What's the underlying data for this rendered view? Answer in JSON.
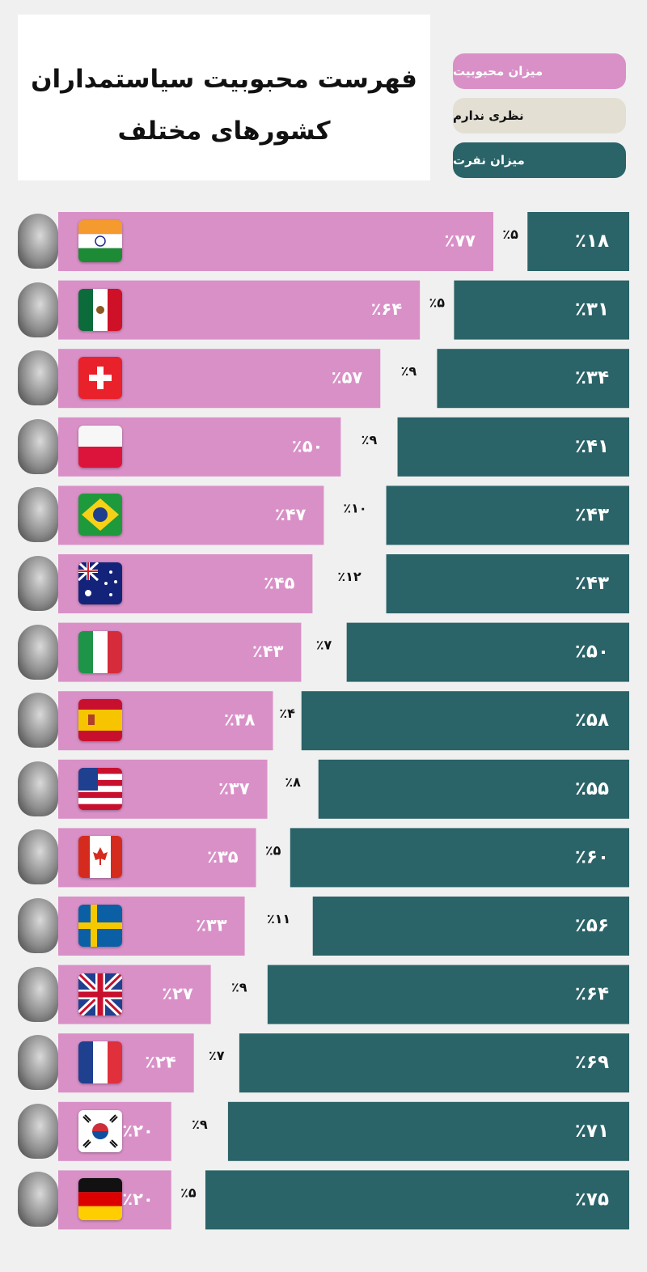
{
  "title": {
    "line1": "فهرست محبوبیت سیاستمداران",
    "line2": "کشورهای مختلف"
  },
  "legend": [
    {
      "label": "میزان محبوبیت",
      "color": "#d990c7",
      "text_color": "#ffffff"
    },
    {
      "label": "نظری ندارم",
      "color": "#e3dfd3",
      "text_color": "#111111"
    },
    {
      "label": "میزان نفرت",
      "color": "#2a6368",
      "text_color": "#ffffff"
    }
  ],
  "colors": {
    "approval": "#d990c7",
    "disapproval": "#2a6368",
    "text_dark": "#111111",
    "text_light": "#ffffff",
    "face_icon": "leader-portrait-photo"
  },
  "chart_data": {
    "type": "bar",
    "orientation": "horizontal",
    "stacked": true,
    "title": "فهرست محبوبیت سیاستمداران کشورهای مختلف",
    "xlim": [
      0,
      100
    ],
    "categories": [
      "india-flag",
      "mexico-flag",
      "switzerland-flag",
      "poland-flag",
      "brazil-flag",
      "australia-flag",
      "italy-flag",
      "spain-flag",
      "usa-flag",
      "canada-flag",
      "sweden-flag",
      "uk-flag",
      "france-flag",
      "south-korea-flag",
      "germany-flag"
    ],
    "series": [
      {
        "name": "میزان محبوبیت",
        "values": [
          77,
          64,
          57,
          50,
          47,
          45,
          43,
          38,
          37,
          35,
          33,
          27,
          24,
          20,
          20
        ],
        "labels": [
          "٪۷۷",
          "٪۶۴",
          "٪۵۷",
          "٪۵۰",
          "٪۴۷",
          "٪۴۵",
          "٪۴۳",
          "٪۳۸",
          "٪۳۷",
          "٪۳۵",
          "٪۳۳",
          "٪۲۷",
          "٪۲۴",
          "٪۲۰",
          "٪۲۰"
        ]
      },
      {
        "name": "نظری ندارم",
        "values": [
          5,
          5,
          9,
          9,
          10,
          12,
          7,
          4,
          8,
          5,
          11,
          9,
          7,
          9,
          5
        ],
        "labels": [
          "٪۵",
          "٪۵",
          "٪۹",
          "٪۹",
          "٪۱۰",
          "٪۱۲",
          "٪۷",
          "٪۴",
          "٪۸",
          "٪۵",
          "٪۱۱",
          "٪۹",
          "٪۷",
          "٪۹",
          "٪۵"
        ]
      },
      {
        "name": "میزان نفرت",
        "values": [
          18,
          31,
          34,
          41,
          43,
          43,
          50,
          58,
          55,
          60,
          56,
          64,
          69,
          71,
          75
        ],
        "labels": [
          "٪۱۸",
          "٪۳۱",
          "٪۳۴",
          "٪۴۱",
          "٪۴۳",
          "٪۴۳",
          "٪۵۰",
          "٪۵۸",
          "٪۵۵",
          "٪۶۰",
          "٪۵۶",
          "٪۶۴",
          "٪۶۹",
          "٪۷۱",
          "٪۷۵"
        ]
      }
    ]
  }
}
